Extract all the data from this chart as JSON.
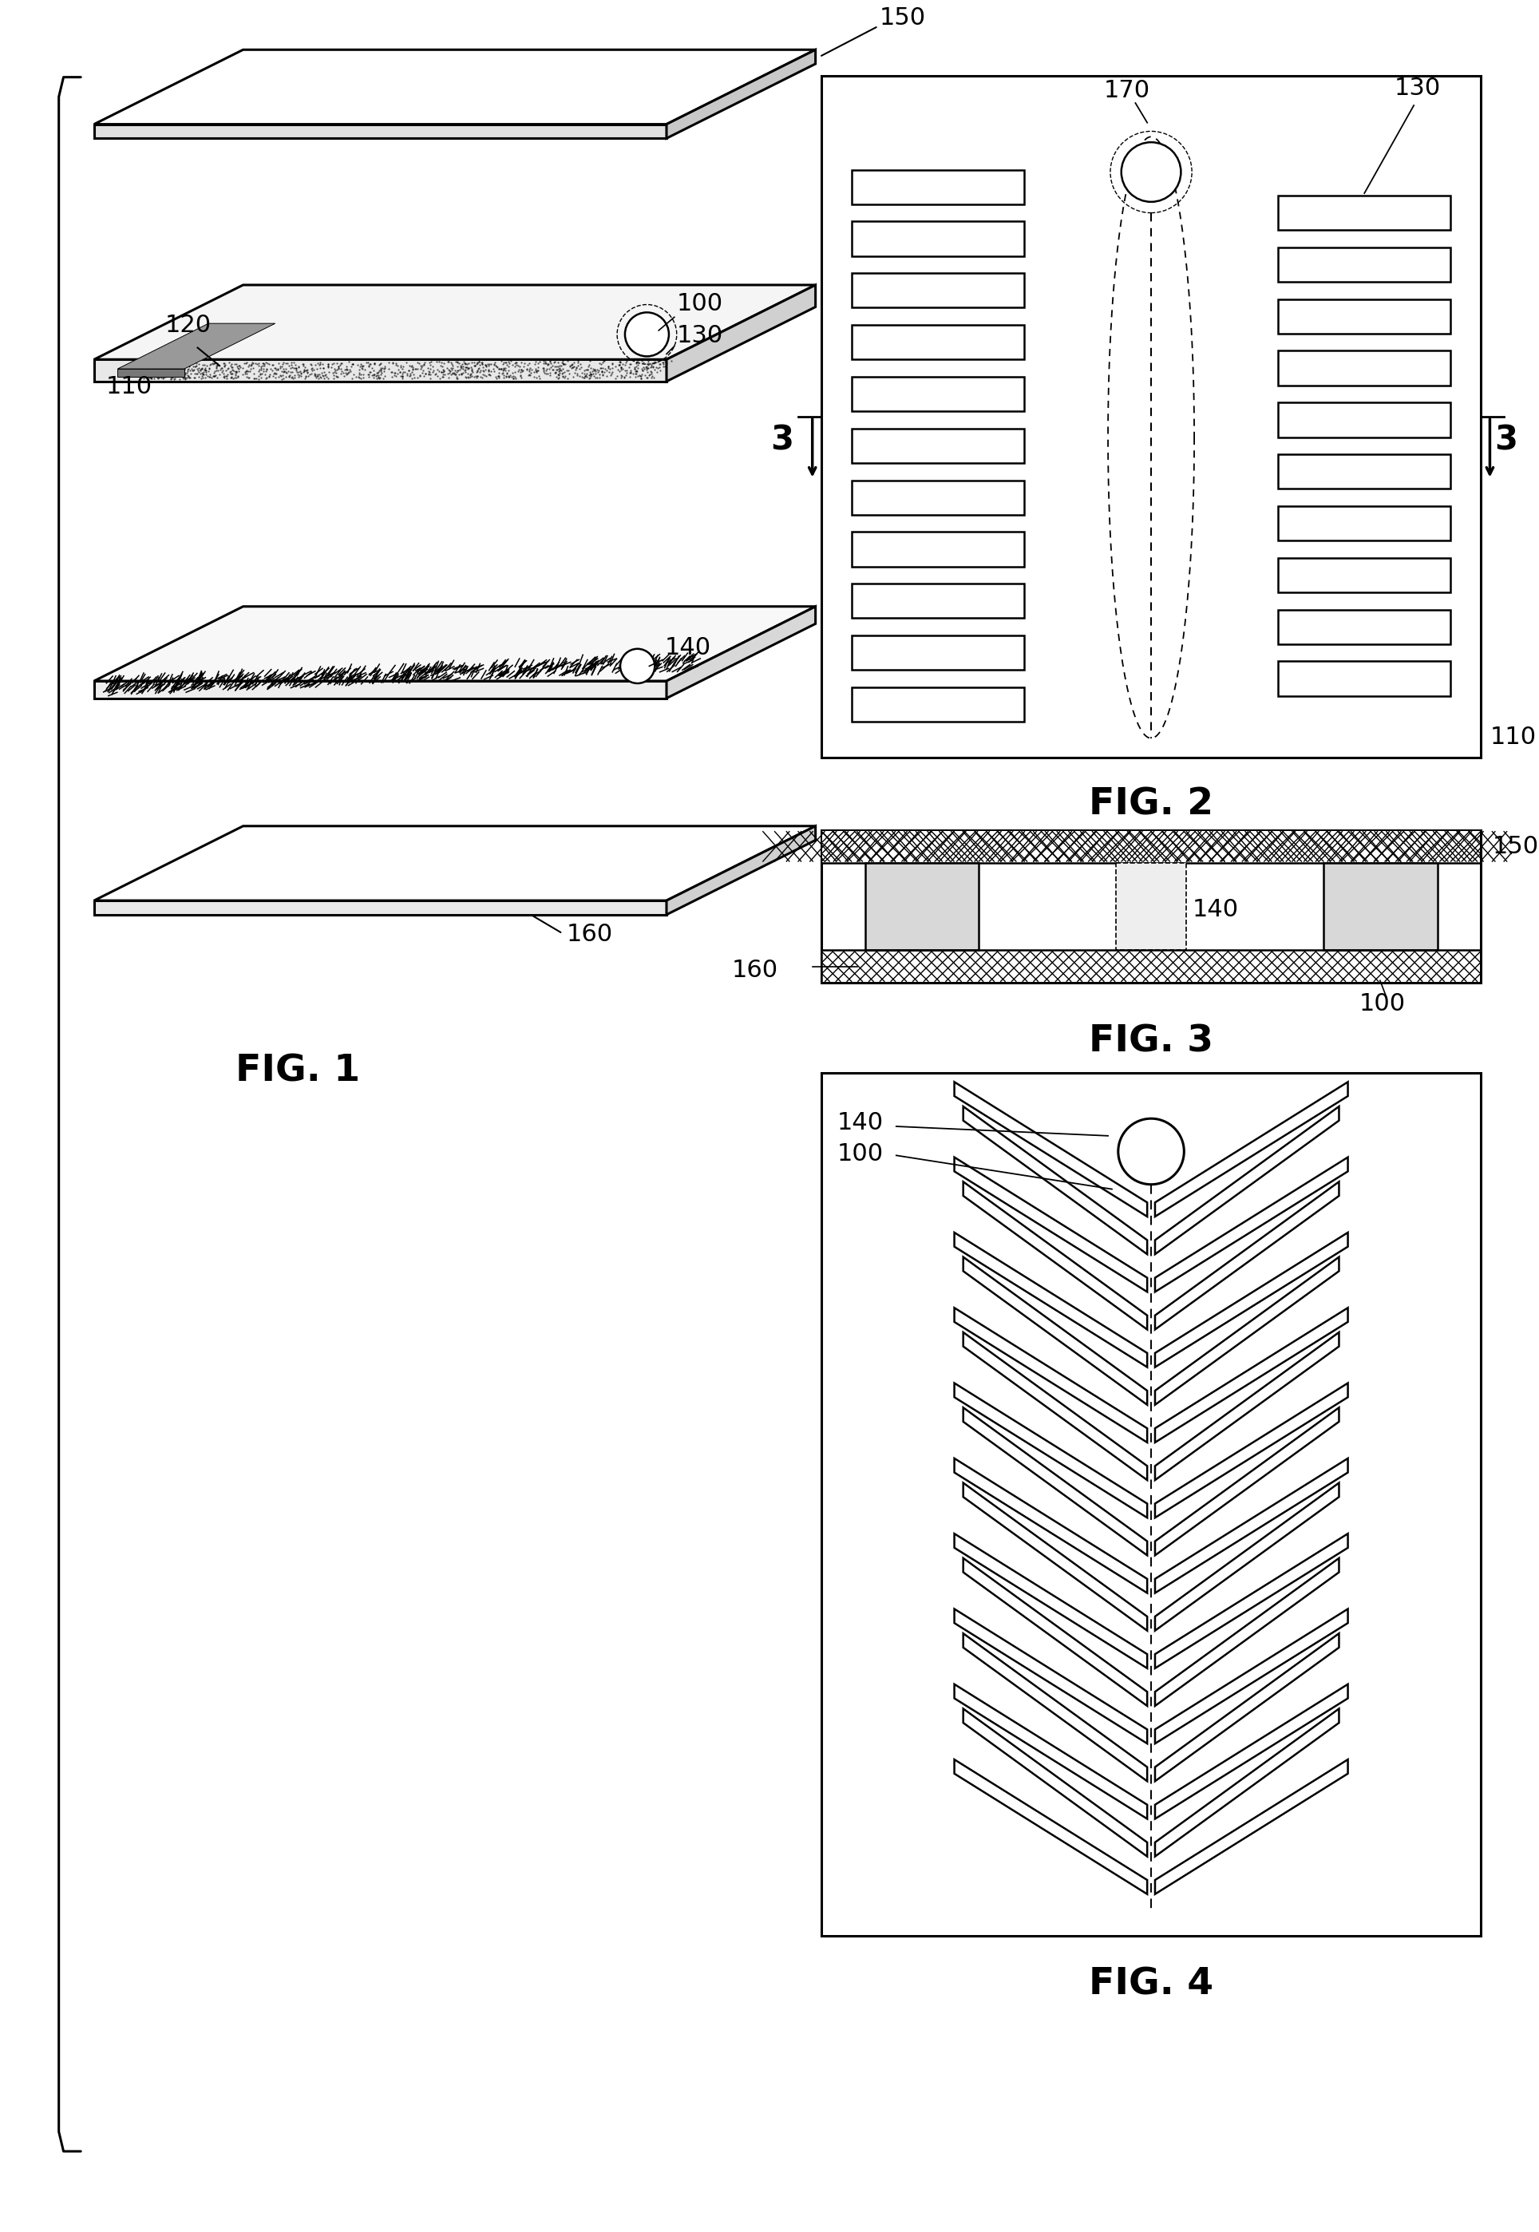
{
  "fig_width": 19.28,
  "fig_height": 27.96,
  "bg": "#ffffff",
  "lc": "#000000",
  "fig1_label": "FIG. 1",
  "fig2_label": "FIG. 2",
  "fig3_label": "FIG. 3",
  "fig4_label": "FIG. 4",
  "label_150a": "150",
  "label_120": "120",
  "label_110a": "110",
  "label_100a": "100",
  "label_130a": "130",
  "label_140a": "140",
  "label_160a": "160",
  "label_170": "170",
  "label_130b": "130",
  "label_110b": "110",
  "label_150b": "150",
  "label_160b": "160",
  "label_140b": "140",
  "label_100b": "100",
  "label_140c": "140",
  "label_100c": "100",
  "label_3a": "3",
  "label_3b": "3"
}
